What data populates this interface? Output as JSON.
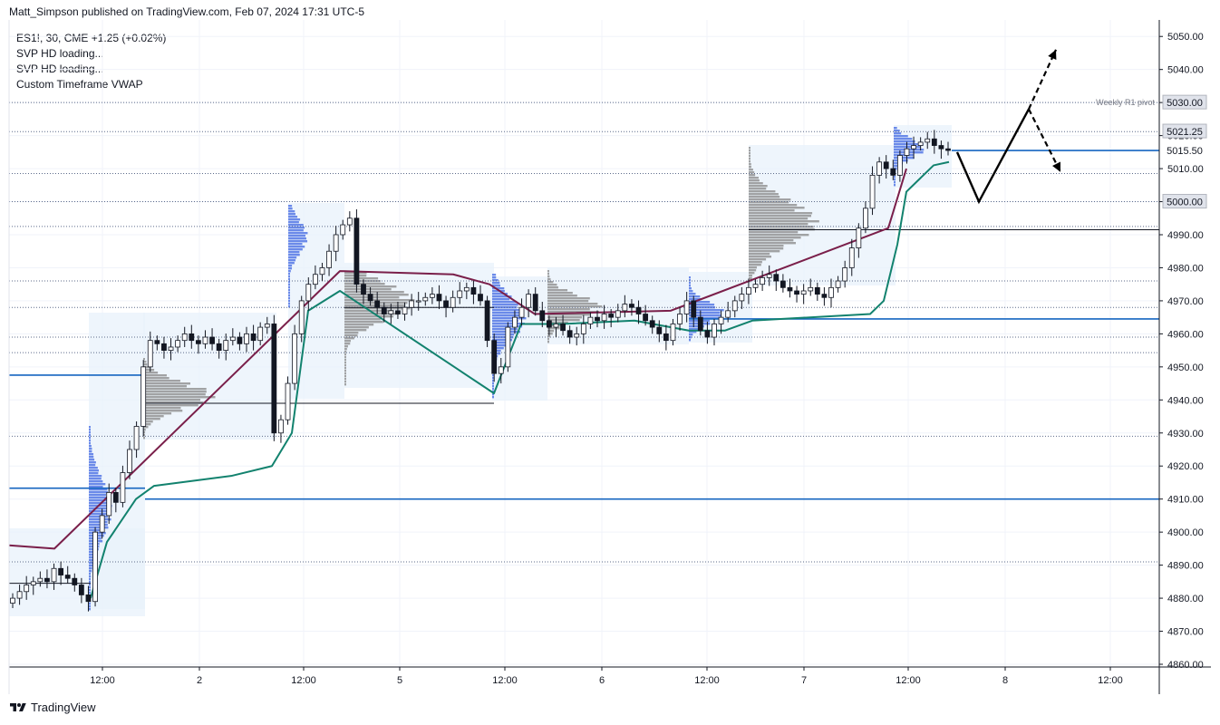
{
  "header": {
    "published": "Matt_Simpson published on TradingView.com, Feb 07, 2024 17:31 UTC-5"
  },
  "legend": {
    "symbol_line": "ES1!, 30, CME  +1.25 (+0.02%)",
    "indicators": [
      "SVP HD loading...",
      "SVP HD loading...",
      "Custom Timeframe VWAP"
    ]
  },
  "footer": {
    "brand": "TradingView"
  },
  "colors": {
    "up": "#ffffff",
    "down": "#131722",
    "vwap_old": "#7a1f4a",
    "vwap_new": "#12826e",
    "hline": "#1565c0",
    "profile_blue": "#4a6fe3",
    "profile_gray": "#8d8d8d",
    "box": "#e8f2fb"
  },
  "chart_data": {
    "type": "candlestick",
    "symbol": "ES1!",
    "ylim": [
      4855,
      5053
    ],
    "y_ticks": [
      "4860.00",
      "4870.00",
      "4880.00",
      "4890.00",
      "4900.00",
      "4910.00",
      "4920.00",
      "4930.00",
      "4940.00",
      "4950.00",
      "4960.00",
      "4970.00",
      "4980.00",
      "4990.00",
      "5000.00",
      "5010.00",
      "5020.00",
      "5030.00",
      "5040.00",
      "5050.00"
    ],
    "x_ticks": [
      "12:00",
      "2",
      "12:00",
      "5",
      "12:00",
      "6",
      "12:00",
      "7",
      "12:00",
      "8",
      "12:00"
    ],
    "price_labels": [
      {
        "label": "5030.00",
        "value": 5030,
        "note": "Weekly R1 pivot",
        "style": "dark"
      },
      {
        "label": "5021.25",
        "value": 5021.25,
        "style": "dark"
      },
      {
        "label": "5015.50",
        "value": 5015.5,
        "style": "light"
      },
      {
        "label": "5000.00",
        "value": 5000,
        "style": "dark"
      }
    ],
    "horizontal_lines": [
      {
        "value": 5015.5,
        "style": "solid-blue"
      },
      {
        "value": 4964.5,
        "style": "solid-blue"
      },
      {
        "value": 4910.0,
        "style": "solid-blue"
      },
      {
        "value": 4947.5,
        "style": "solid-blue"
      },
      {
        "value": 4913.3,
        "style": "solid-blue"
      },
      {
        "value": 4991.5,
        "style": "solid-black"
      },
      {
        "value": 4939.0,
        "style": "solid-black"
      },
      {
        "value": 4968.0,
        "style": "solid-black"
      },
      {
        "value": 4884.5,
        "style": "solid-black"
      }
    ],
    "dotted_levels": [
      5030.0,
      5021.2,
      5008.5,
      5000.0,
      4992.5,
      4976.0,
      4968.0,
      4959.0,
      4954.3,
      4929.0,
      4891.0
    ],
    "close_series": [
      4880,
      4882,
      4884,
      4885,
      4886,
      4885,
      4889,
      4887,
      4886,
      4884,
      4881,
      4879,
      4900,
      4905,
      4912,
      4909,
      4918,
      4925,
      4932,
      4950,
      4958,
      4957,
      4955,
      4956,
      4958,
      4960,
      4958,
      4957,
      4959,
      4957,
      4955,
      4958,
      4959,
      4957,
      4960,
      4958,
      4962,
      4963,
      4930,
      4934,
      4945,
      4960,
      4970,
      4975,
      4978,
      4980,
      4985,
      4990,
      4993,
      4995,
      4975,
      4972,
      4970,
      4968,
      4966,
      4967,
      4966,
      4968,
      4970,
      4970,
      4971,
      4972,
      4970,
      4968,
      4971,
      4973,
      4974,
      4972,
      4970,
      4958,
      4948,
      4950,
      4962,
      4965,
      4968,
      4972,
      4967,
      4964,
      4962,
      4963,
      4961,
      4959,
      4960,
      4963,
      4965,
      4964,
      4966,
      4965,
      4967,
      4969,
      4968,
      4966,
      4964,
      4962,
      4960,
      4958,
      4963,
      4966,
      4970,
      4965,
      4961,
      4959,
      4963,
      4965,
      4967,
      4970,
      4972,
      4974,
      4975,
      4977,
      4978,
      4976,
      4974,
      4973,
      4972,
      4973,
      4974,
      4972,
      4971,
      4974,
      4976,
      4980,
      4986,
      4992,
      4998,
      5008,
      5012,
      5010,
      5008,
      5014,
      5016,
      5017,
      5018,
      5019,
      5017,
      5016,
      5015.5
    ],
    "vwap_new": [
      {
        "x": 100,
        "y": 4880
      },
      {
        "x": 118,
        "y": 4897
      },
      {
        "x": 150,
        "y": 4910
      },
      {
        "x": 170,
        "y": 4914
      },
      {
        "x": 255,
        "y": 4917
      },
      {
        "x": 300,
        "y": 4920
      },
      {
        "x": 322,
        "y": 4930
      },
      {
        "x": 340,
        "y": 4967
      },
      {
        "x": 375,
        "y": 4973
      },
      {
        "x": 545,
        "y": 4942
      },
      {
        "x": 575,
        "y": 4963
      },
      {
        "x": 620,
        "y": 4963
      },
      {
        "x": 700,
        "y": 4964
      },
      {
        "x": 760,
        "y": 4961
      },
      {
        "x": 800,
        "y": 4961
      },
      {
        "x": 830,
        "y": 4964
      },
      {
        "x": 960,
        "y": 4966
      },
      {
        "x": 975,
        "y": 4970
      },
      {
        "x": 990,
        "y": 4987
      },
      {
        "x": 1000,
        "y": 5003
      },
      {
        "x": 1030,
        "y": 5011
      },
      {
        "x": 1047,
        "y": 5012
      }
    ],
    "vwap_old": [
      {
        "x": 10,
        "y": 4896
      },
      {
        "x": 60,
        "y": 4895
      },
      {
        "x": 375,
        "y": 4979
      },
      {
        "x": 500,
        "y": 4978
      },
      {
        "x": 540,
        "y": 4975
      },
      {
        "x": 590,
        "y": 4966
      },
      {
        "x": 740,
        "y": 4967
      },
      {
        "x": 980,
        "y": 4992
      },
      {
        "x": 1000,
        "y": 5010
      }
    ],
    "projection": {
      "solid": [
        {
          "x": 1056,
          "y": 5015
        },
        {
          "x": 1080,
          "y": 5000
        },
        {
          "x": 1135,
          "y": 5028
        }
      ],
      "dashed_up": [
        {
          "x": 1135,
          "y": 5028
        },
        {
          "x": 1165,
          "y": 5046
        }
      ],
      "dashed_down": [
        {
          "x": 1135,
          "y": 5028
        },
        {
          "x": 1170,
          "y": 5009
        }
      ]
    }
  }
}
